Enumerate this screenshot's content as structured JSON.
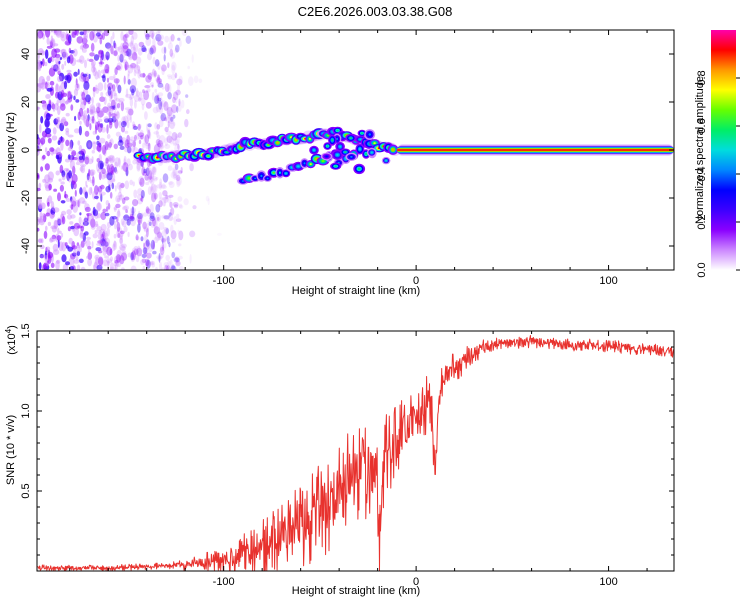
{
  "figure": {
    "title": "C2E6.2026.003.03.38.G08"
  },
  "colors": {
    "snr_line": "#e8322e",
    "frame": "#000000",
    "colormap": [
      "#ffffff",
      "#cc88ff",
      "#8a00ff",
      "#3c00ff",
      "#0000ff",
      "#0088ff",
      "#00dddd",
      "#00ee66",
      "#66ff00",
      "#ffff00",
      "#ff9900",
      "#ff0000",
      "#ff00aa"
    ]
  },
  "chart_data": [
    {
      "type": "heatmap",
      "name": "spectrogram",
      "xlabel": "Height of straight line (km)",
      "ylabel": "Frequency (Hz)",
      "xlim": [
        -197,
        134
      ],
      "ylim": [
        -50,
        50
      ],
      "xticks": [
        -100,
        0,
        100
      ],
      "xtick_labels": [
        "-100",
        "0",
        "100"
      ],
      "yticks": [
        -40,
        -20,
        0,
        20,
        40
      ],
      "ytick_labels": [
        "-40",
        "-20",
        "0",
        "20",
        "40"
      ],
      "colorbar": {
        "label": "Normalized spectral amplitude",
        "range": [
          0,
          1
        ],
        "ticks": [
          0.0,
          0.2,
          0.4,
          0.6,
          0.8
        ],
        "tick_labels": [
          "0.0",
          "0.2",
          "0.4",
          "0.6",
          "0.8"
        ]
      },
      "noise_region_km": [
        -197,
        -122
      ],
      "upper_branch": {
        "x": [
          -144,
          -130,
          -110,
          -100,
          -90,
          -80,
          -70,
          -60,
          -50,
          -40,
          -30,
          -20,
          -10
        ],
        "y": [
          -3,
          -3,
          -2,
          0,
          2,
          3,
          4,
          5,
          6,
          7,
          4,
          2,
          0
        ]
      },
      "lower_branch": {
        "x": [
          -90,
          -80,
          -70,
          -60,
          -50,
          -40,
          -30,
          -20
        ],
        "y": [
          -12,
          -12,
          -10,
          -7,
          -4,
          -2,
          -1,
          0
        ]
      },
      "carrier": {
        "x": [
          -10,
          134
        ],
        "y": [
          0,
          0
        ],
        "amplitude": 0.95
      }
    },
    {
      "type": "line",
      "name": "snr",
      "xlabel": "Height of straight line (km)",
      "ylabel": "SNR (10 * v/v)",
      "scale_label": "(x10",
      "scale_exponent": "4",
      "scale_close": ")",
      "xlim": [
        -197,
        134
      ],
      "ylim": [
        0,
        1.5
      ],
      "xticks": [
        -100,
        0,
        100
      ],
      "xtick_labels": [
        "-100",
        "0",
        "100"
      ],
      "yticks": [
        0.5,
        1.0,
        1.5
      ],
      "ytick_labels": [
        "0.5",
        "1.0",
        "1.5"
      ],
      "profile": {
        "x": [
          -197,
          -160,
          -120,
          -105,
          -95,
          -85,
          -75,
          -65,
          -55,
          -45,
          -35,
          -28,
          -22,
          -18,
          -12,
          -5,
          0,
          5,
          12,
          18,
          25,
          35,
          45,
          60,
          80,
          100,
          120,
          134
        ],
        "y": [
          0.02,
          0.02,
          0.04,
          0.07,
          0.1,
          0.14,
          0.2,
          0.27,
          0.35,
          0.45,
          0.55,
          0.62,
          0.7,
          0.76,
          0.83,
          0.9,
          0.98,
          1.05,
          1.15,
          1.25,
          1.33,
          1.4,
          1.43,
          1.44,
          1.42,
          1.41,
          1.39,
          1.38
        ]
      },
      "noise_amplitude": {
        "x": [
          -197,
          -130,
          -110,
          -90,
          -70,
          -50,
          -35,
          -20,
          -10,
          0,
          10,
          20,
          30,
          40,
          60,
          134
        ],
        "y": [
          0.02,
          0.02,
          0.06,
          0.12,
          0.22,
          0.3,
          0.35,
          0.33,
          0.25,
          0.2,
          0.16,
          0.1,
          0.06,
          0.04,
          0.04,
          0.04
        ]
      },
      "dips": [
        {
          "x": -19,
          "depth": 0.45
        },
        {
          "x": 10,
          "depth": 0.45
        }
      ]
    }
  ]
}
